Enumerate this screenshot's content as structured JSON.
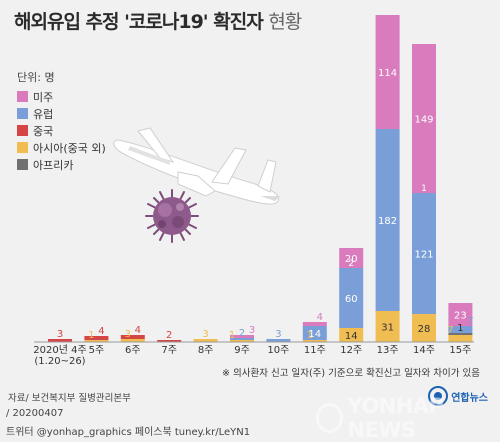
{
  "header": {
    "title_main": "해외유입 추정 '코로나19' 확진자",
    "title_light": "현황"
  },
  "unit_label": "단위: 명",
  "legend": [
    {
      "label": "미주",
      "color": "#d97bbd"
    },
    {
      "label": "유럽",
      "color": "#7a9fd8"
    },
    {
      "label": "중국",
      "color": "#d64545"
    },
    {
      "label": "아시아(중국 외)",
      "color": "#f0bd53"
    },
    {
      "label": "아프리카",
      "color": "#707070"
    }
  ],
  "chart_data": {
    "type": "bar",
    "stacked": true,
    "categories": [
      "2020년 4주\n(1.20~26)",
      "5주",
      "6주",
      "7주",
      "8주",
      "9주",
      "10주",
      "11주",
      "12주",
      "13주",
      "14주",
      "15주"
    ],
    "series": [
      {
        "name": "아시아(중국 외)",
        "color": "#f0bd53",
        "values": [
          0,
          1,
          3,
          0,
          3,
          1,
          0,
          1,
          14,
          31,
          28,
          7
        ]
      },
      {
        "name": "중국",
        "color": "#d64545",
        "values": [
          3,
          4,
          4,
          2,
          0,
          0,
          0,
          0,
          0,
          0,
          0,
          0
        ]
      },
      {
        "name": "아프리카",
        "color": "#707070",
        "values": [
          0,
          0,
          0,
          0,
          0,
          0,
          0,
          0,
          0,
          0,
          0,
          1
        ]
      },
      {
        "name": "유럽",
        "color": "#7a9fd8",
        "values": [
          0,
          0,
          0,
          0,
          0,
          2,
          3,
          14,
          60,
          182,
          121,
          7
        ]
      },
      {
        "name": "미주",
        "color": "#d97bbd",
        "values": [
          0,
          0,
          0,
          0,
          0,
          3,
          0,
          4,
          20,
          114,
          149,
          23
        ]
      }
    ],
    "extra_labels": [
      {
        "category": "12주",
        "text": "2"
      },
      {
        "category": "14주",
        "text": "1"
      }
    ],
    "grid": false
  },
  "note": "※ 의사환자 신고 일자(주) 기준으로 확진신고 일자와 차이가 있음",
  "source": "자료/ 보건복지부 질병관리본부",
  "date": "/ 20200407",
  "sns": "트위터 @yonhap_graphics  페이스북 tuney.kr/LeYN1",
  "agency_logo": "연합뉴스",
  "watermark": "YONHAP NEWS",
  "icons": {
    "illustration": "airplane-icon",
    "virus": "virus-icon"
  }
}
